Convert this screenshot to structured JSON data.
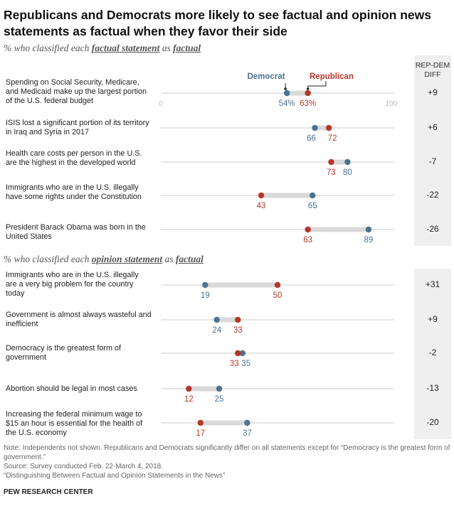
{
  "title": "Republicans and Democrats more likely to see factual and opinion news statements as factual when they favor their side",
  "diff_header": "REP-DEM DIFF",
  "section1": {
    "pre": "% who classified each ",
    "u1": "factual statement",
    "mid": " as ",
    "u2": "factual"
  },
  "section2": {
    "pre": "% who classified each ",
    "u1": "opinion statement",
    "mid": " as ",
    "u2": "factual"
  },
  "legend": {
    "democrat": "Democrat",
    "republican": "Republican"
  },
  "colors": {
    "democrat": "#4a7390",
    "republican": "#b5372a",
    "bar": "#d9d9d9",
    "axis": "#cccccc"
  },
  "chart_data": {
    "type": "dot",
    "xlim": [
      0,
      100
    ],
    "axis_ticks": [
      "0",
      "100"
    ],
    "value_suffix_first_row": "%",
    "series": [
      {
        "name": "Democrat",
        "color": "#4a7390"
      },
      {
        "name": "Republican",
        "color": "#b5372a"
      }
    ],
    "factual": [
      {
        "label": "Spending on Social Security, Medicare, and Medicaid make up the largest portion of the U.S. federal budget",
        "dem": 54,
        "rep": 63,
        "diff": "+9"
      },
      {
        "label": "ISIS lost a significant portion of its territory in Iraq and Syria in 2017",
        "dem": 66,
        "rep": 72,
        "diff": "+6"
      },
      {
        "label": "Health care costs per person in the U.S. are the highest in the developed world",
        "dem": 80,
        "rep": 73,
        "diff": "-7"
      },
      {
        "label": "Immigrants who are in the U.S. illegally have some rights under the Constitution",
        "dem": 65,
        "rep": 43,
        "diff": "-22"
      },
      {
        "label": "President Barack Obama was born in the United States",
        "dem": 89,
        "rep": 63,
        "diff": "-26"
      }
    ],
    "opinion": [
      {
        "label": "Immigrants who are in the U.S. illegally are a very big problem for the country today",
        "dem": 19,
        "rep": 50,
        "diff": "+31"
      },
      {
        "label": "Government is almost always wasteful and inefficient",
        "dem": 24,
        "rep": 33,
        "diff": "+9"
      },
      {
        "label": "Democracy is the greatest form of government",
        "dem": 35,
        "rep": 33,
        "diff": "-2"
      },
      {
        "label": "Abortion should be legal in most cases",
        "dem": 25,
        "rep": 12,
        "diff": "-13"
      },
      {
        "label": "Increasing the federal minimum wage to $15 an hour is essential for the health of the U.S. economy",
        "dem": 37,
        "rep": 17,
        "diff": "-20"
      }
    ]
  },
  "notes": {
    "note": "Note: Independents not shown. Republicans and Democrats significantly differ on all statements except for “Democracy is the greatest form of government.”",
    "source": "Source: Survey conducted Feb. 22-March 4, 2018.",
    "report": "“Distinguishing Between Factual and Opinion Statements in the News”",
    "org": "PEW RESEARCH CENTER"
  }
}
